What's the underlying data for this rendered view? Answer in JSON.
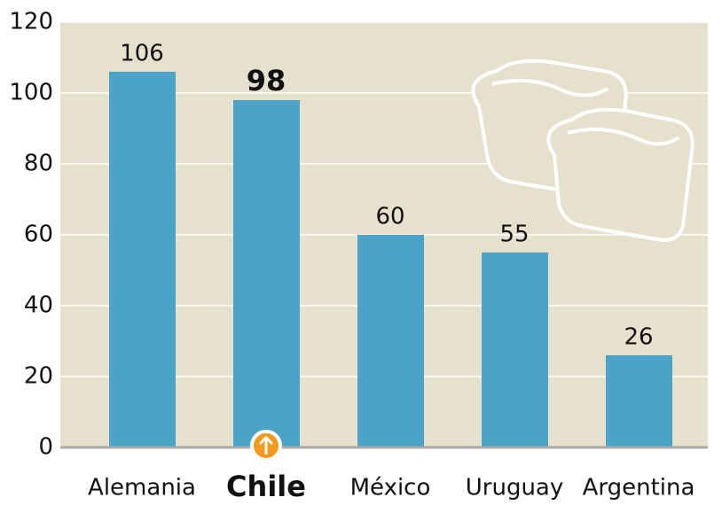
{
  "chart_data": {
    "type": "bar",
    "categories": [
      "Alemania",
      "Chile",
      "México",
      "Uruguay",
      "Argentina"
    ],
    "values": [
      106,
      98,
      60,
      55,
      26
    ],
    "color": "#4ba3c7",
    "highlight": "Chile",
    "ylim": [
      0,
      120
    ],
    "yticks": [
      0,
      20,
      40,
      60,
      80,
      100,
      120
    ],
    "grid": true
  }
}
